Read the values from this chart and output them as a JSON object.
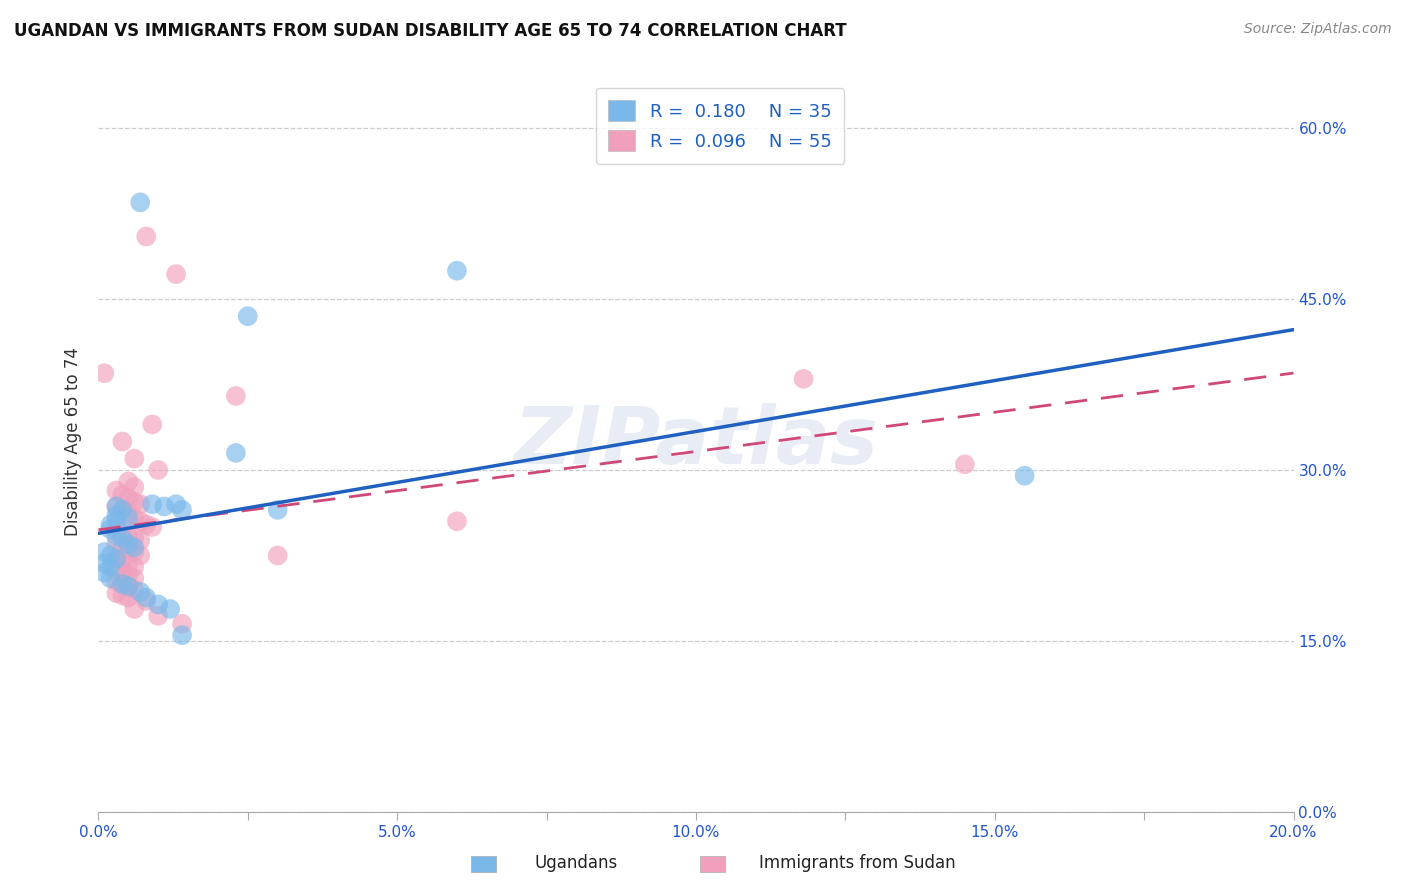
{
  "title": "UGANDAN VS IMMIGRANTS FROM SUDAN DISABILITY AGE 65 TO 74 CORRELATION CHART",
  "source": "Source: ZipAtlas.com",
  "ylabel": "Disability Age 65 to 74",
  "xlim": [
    0.0,
    0.2
  ],
  "ylim": [
    0.0,
    0.65
  ],
  "xticks": [
    0.0,
    0.025,
    0.05,
    0.075,
    0.1,
    0.125,
    0.15,
    0.175,
    0.2
  ],
  "xtick_labels": [
    "0.0%",
    "",
    "5.0%",
    "",
    "10.0%",
    "",
    "15.0%",
    "",
    "20.0%"
  ],
  "yticks": [
    0.0,
    0.15,
    0.3,
    0.45,
    0.6
  ],
  "ytick_labels": [
    "0.0%",
    "15.0%",
    "30.0%",
    "45.0%",
    "60.0%"
  ],
  "ugandan_color": "#7ab8ea",
  "sudan_color": "#f0a0bc",
  "ugandan_R": 0.18,
  "ugandan_N": 35,
  "sudan_R": 0.096,
  "sudan_N": 55,
  "trend_blue": "#2060c0",
  "trend_pink": "#d04878",
  "background_color": "#ffffff",
  "grid_color": "#cccccc",
  "watermark": "ZIPatlas",
  "ugandan_points": [
    [
      0.007,
      0.535
    ],
    [
      0.025,
      0.435
    ],
    [
      0.06,
      0.475
    ],
    [
      0.023,
      0.315
    ],
    [
      0.03,
      0.265
    ],
    [
      0.014,
      0.265
    ],
    [
      0.009,
      0.27
    ],
    [
      0.011,
      0.268
    ],
    [
      0.013,
      0.27
    ],
    [
      0.003,
      0.268
    ],
    [
      0.004,
      0.265
    ],
    [
      0.003,
      0.26
    ],
    [
      0.005,
      0.258
    ],
    [
      0.003,
      0.255
    ],
    [
      0.002,
      0.252
    ],
    [
      0.002,
      0.248
    ],
    [
      0.003,
      0.242
    ],
    [
      0.004,
      0.24
    ],
    [
      0.005,
      0.235
    ],
    [
      0.006,
      0.232
    ],
    [
      0.001,
      0.228
    ],
    [
      0.002,
      0.225
    ],
    [
      0.003,
      0.222
    ],
    [
      0.001,
      0.218
    ],
    [
      0.002,
      0.215
    ],
    [
      0.001,
      0.21
    ],
    [
      0.002,
      0.205
    ],
    [
      0.004,
      0.2
    ],
    [
      0.005,
      0.198
    ],
    [
      0.007,
      0.193
    ],
    [
      0.008,
      0.188
    ],
    [
      0.01,
      0.182
    ],
    [
      0.012,
      0.178
    ],
    [
      0.014,
      0.155
    ],
    [
      0.155,
      0.295
    ]
  ],
  "sudan_points": [
    [
      0.008,
      0.505
    ],
    [
      0.013,
      0.472
    ],
    [
      0.001,
      0.385
    ],
    [
      0.023,
      0.365
    ],
    [
      0.009,
      0.34
    ],
    [
      0.004,
      0.325
    ],
    [
      0.006,
      0.31
    ],
    [
      0.01,
      0.3
    ],
    [
      0.005,
      0.29
    ],
    [
      0.006,
      0.285
    ],
    [
      0.003,
      0.282
    ],
    [
      0.004,
      0.278
    ],
    [
      0.005,
      0.275
    ],
    [
      0.006,
      0.272
    ],
    [
      0.007,
      0.27
    ],
    [
      0.003,
      0.268
    ],
    [
      0.004,
      0.265
    ],
    [
      0.005,
      0.262
    ],
    [
      0.006,
      0.258
    ],
    [
      0.007,
      0.255
    ],
    [
      0.008,
      0.252
    ],
    [
      0.009,
      0.25
    ],
    [
      0.003,
      0.248
    ],
    [
      0.004,
      0.245
    ],
    [
      0.005,
      0.242
    ],
    [
      0.006,
      0.24
    ],
    [
      0.007,
      0.238
    ],
    [
      0.003,
      0.235
    ],
    [
      0.004,
      0.232
    ],
    [
      0.005,
      0.23
    ],
    [
      0.006,
      0.228
    ],
    [
      0.007,
      0.225
    ],
    [
      0.003,
      0.222
    ],
    [
      0.004,
      0.22
    ],
    [
      0.005,
      0.218
    ],
    [
      0.006,
      0.215
    ],
    [
      0.003,
      0.212
    ],
    [
      0.004,
      0.21
    ],
    [
      0.005,
      0.208
    ],
    [
      0.006,
      0.205
    ],
    [
      0.003,
      0.202
    ],
    [
      0.004,
      0.2
    ],
    [
      0.005,
      0.198
    ],
    [
      0.006,
      0.195
    ],
    [
      0.003,
      0.192
    ],
    [
      0.004,
      0.19
    ],
    [
      0.005,
      0.188
    ],
    [
      0.008,
      0.185
    ],
    [
      0.006,
      0.178
    ],
    [
      0.01,
      0.172
    ],
    [
      0.014,
      0.165
    ],
    [
      0.03,
      0.225
    ],
    [
      0.06,
      0.255
    ],
    [
      0.118,
      0.38
    ],
    [
      0.145,
      0.305
    ]
  ]
}
